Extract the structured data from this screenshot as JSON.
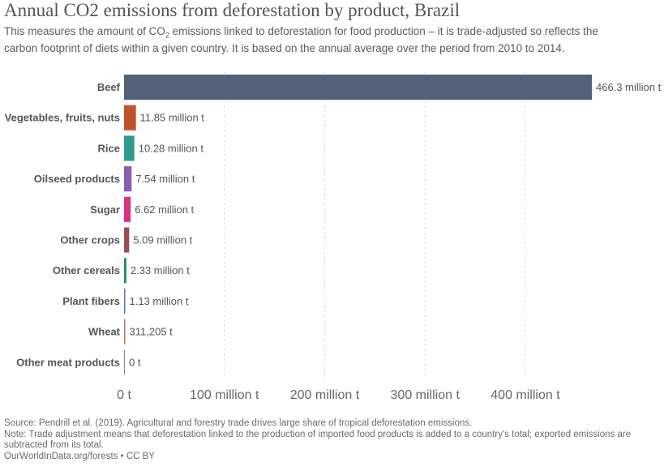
{
  "title_text": "Annual CO2 emissions from deforestation by product, Brazil",
  "subtitle": {
    "part1": "This measures the amount of CO",
    "sub": "2",
    "part2": " emissions linked to deforestation for food production – it is trade-adjusted so reflects the carbon footprint of diets within a given country. It is based on the annual average over the period from 2010 to 2014."
  },
  "footer": {
    "source": "Source: Pendrill et al. (2019). Agricultural and forestry trade drives large share of tropical deforestation emissions.",
    "note": "Note: Trade adjustment means that deforestation linked to the production of imported food products is added to a country's total; exported emissions are subtracted from its total.",
    "credit": "OurWorldInData.org/forests • CC BY"
  },
  "chart_data": {
    "type": "bar",
    "orientation": "horizontal",
    "title": "Annual CO2 emissions from deforestation by product, Brazil",
    "categories": [
      "Beef",
      "Vegetables, fruits, nuts",
      "Rice",
      "Oilseed products",
      "Sugar",
      "Other crops",
      "Other cereals",
      "Plant fibers",
      "Wheat",
      "Other meat products"
    ],
    "values": [
      466300000,
      11850000,
      10280000,
      7540000,
      6620000,
      5090000,
      2330000,
      1130000,
      311205,
      0
    ],
    "value_labels": [
      "466.3 million t",
      "11.85 million t",
      "10.28 million t",
      "7.54 million t",
      "6.62 million t",
      "5.09 million t",
      "2.33 million t",
      "1.13 million t",
      "311,205 t",
      "0 t"
    ],
    "colors": [
      "#536178",
      "#c0522c",
      "#2e9b8f",
      "#8b5cb0",
      "#d8327f",
      "#984f4f",
      "#2c8b5c",
      "#5577aa",
      "#b07a55",
      "#888888"
    ],
    "xticks": [
      0,
      100000000,
      200000000,
      300000000,
      400000000
    ],
    "xtick_labels": [
      "0 t",
      "100 million t",
      "200 million t",
      "300 million t",
      "400 million t"
    ],
    "xlim": [
      0,
      466300000
    ],
    "grid": true,
    "legend": "none"
  }
}
